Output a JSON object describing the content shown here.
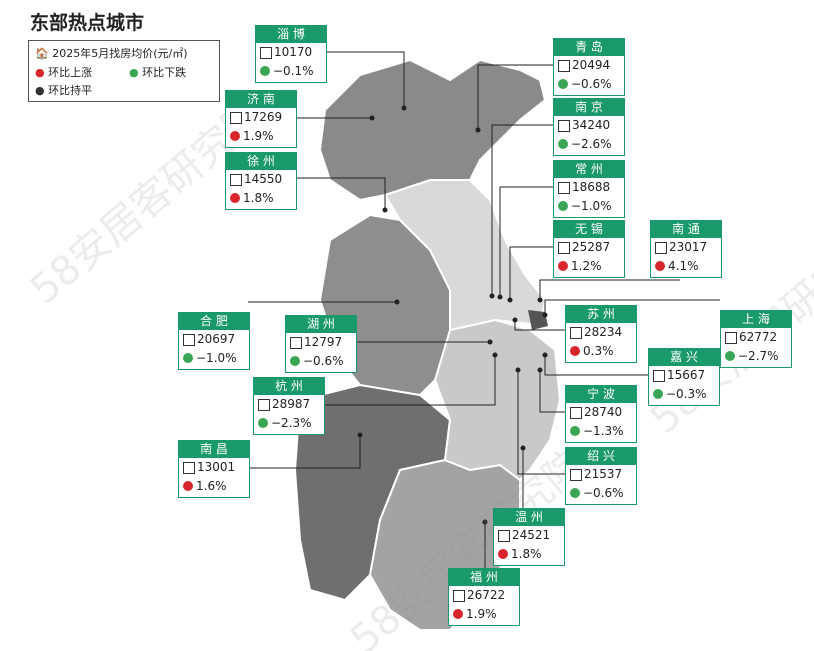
{
  "header": {
    "title": "东部热点城市"
  },
  "legend": {
    "price": "2025年5月找房均价(元/㎡)",
    "up": "环比上涨",
    "down": "环比下跌",
    "flat": "环比持平"
  },
  "watermark": "58安居客研究院",
  "cities": [
    {
      "name": "淄 博",
      "price": "10170",
      "change": "−0.1%"
    },
    {
      "name": "青 岛",
      "price": "20494",
      "change": "−0.6%"
    },
    {
      "name": "南 京",
      "price": "34240",
      "change": "−2.6%"
    },
    {
      "name": "常 州",
      "price": "18688",
      "change": "−1.0%"
    },
    {
      "name": "无 锡",
      "price": "25287",
      "change": "1.2%"
    },
    {
      "name": "南 通",
      "price": "23017",
      "change": "4.1%"
    },
    {
      "name": "上 海",
      "price": "62772",
      "change": "−2.7%"
    },
    {
      "name": "济 南",
      "price": "17269",
      "change": "1.9%"
    },
    {
      "name": "徐 州",
      "price": "14550",
      "change": "1.8%"
    },
    {
      "name": "合 肥",
      "price": "20697",
      "change": "−1.0%"
    },
    {
      "name": "湖 州",
      "price": "12797",
      "change": "−0.6%"
    },
    {
      "name": "苏 州",
      "price": "28234",
      "change": "0.3%"
    },
    {
      "name": "嘉 兴",
      "price": "15667",
      "change": "−0.3%"
    },
    {
      "name": "杭 州",
      "price": "28987",
      "change": "−2.3%"
    },
    {
      "name": "宁 波",
      "price": "28740",
      "change": "−1.3%"
    },
    {
      "name": "南 昌",
      "price": "13001",
      "change": "1.6%"
    },
    {
      "name": "绍 兴",
      "price": "21537",
      "change": "−0.6%"
    },
    {
      "name": "温 州",
      "price": "24521",
      "change": "1.8%"
    },
    {
      "name": "福 州",
      "price": "26722",
      "change": "1.9%"
    }
  ]
}
